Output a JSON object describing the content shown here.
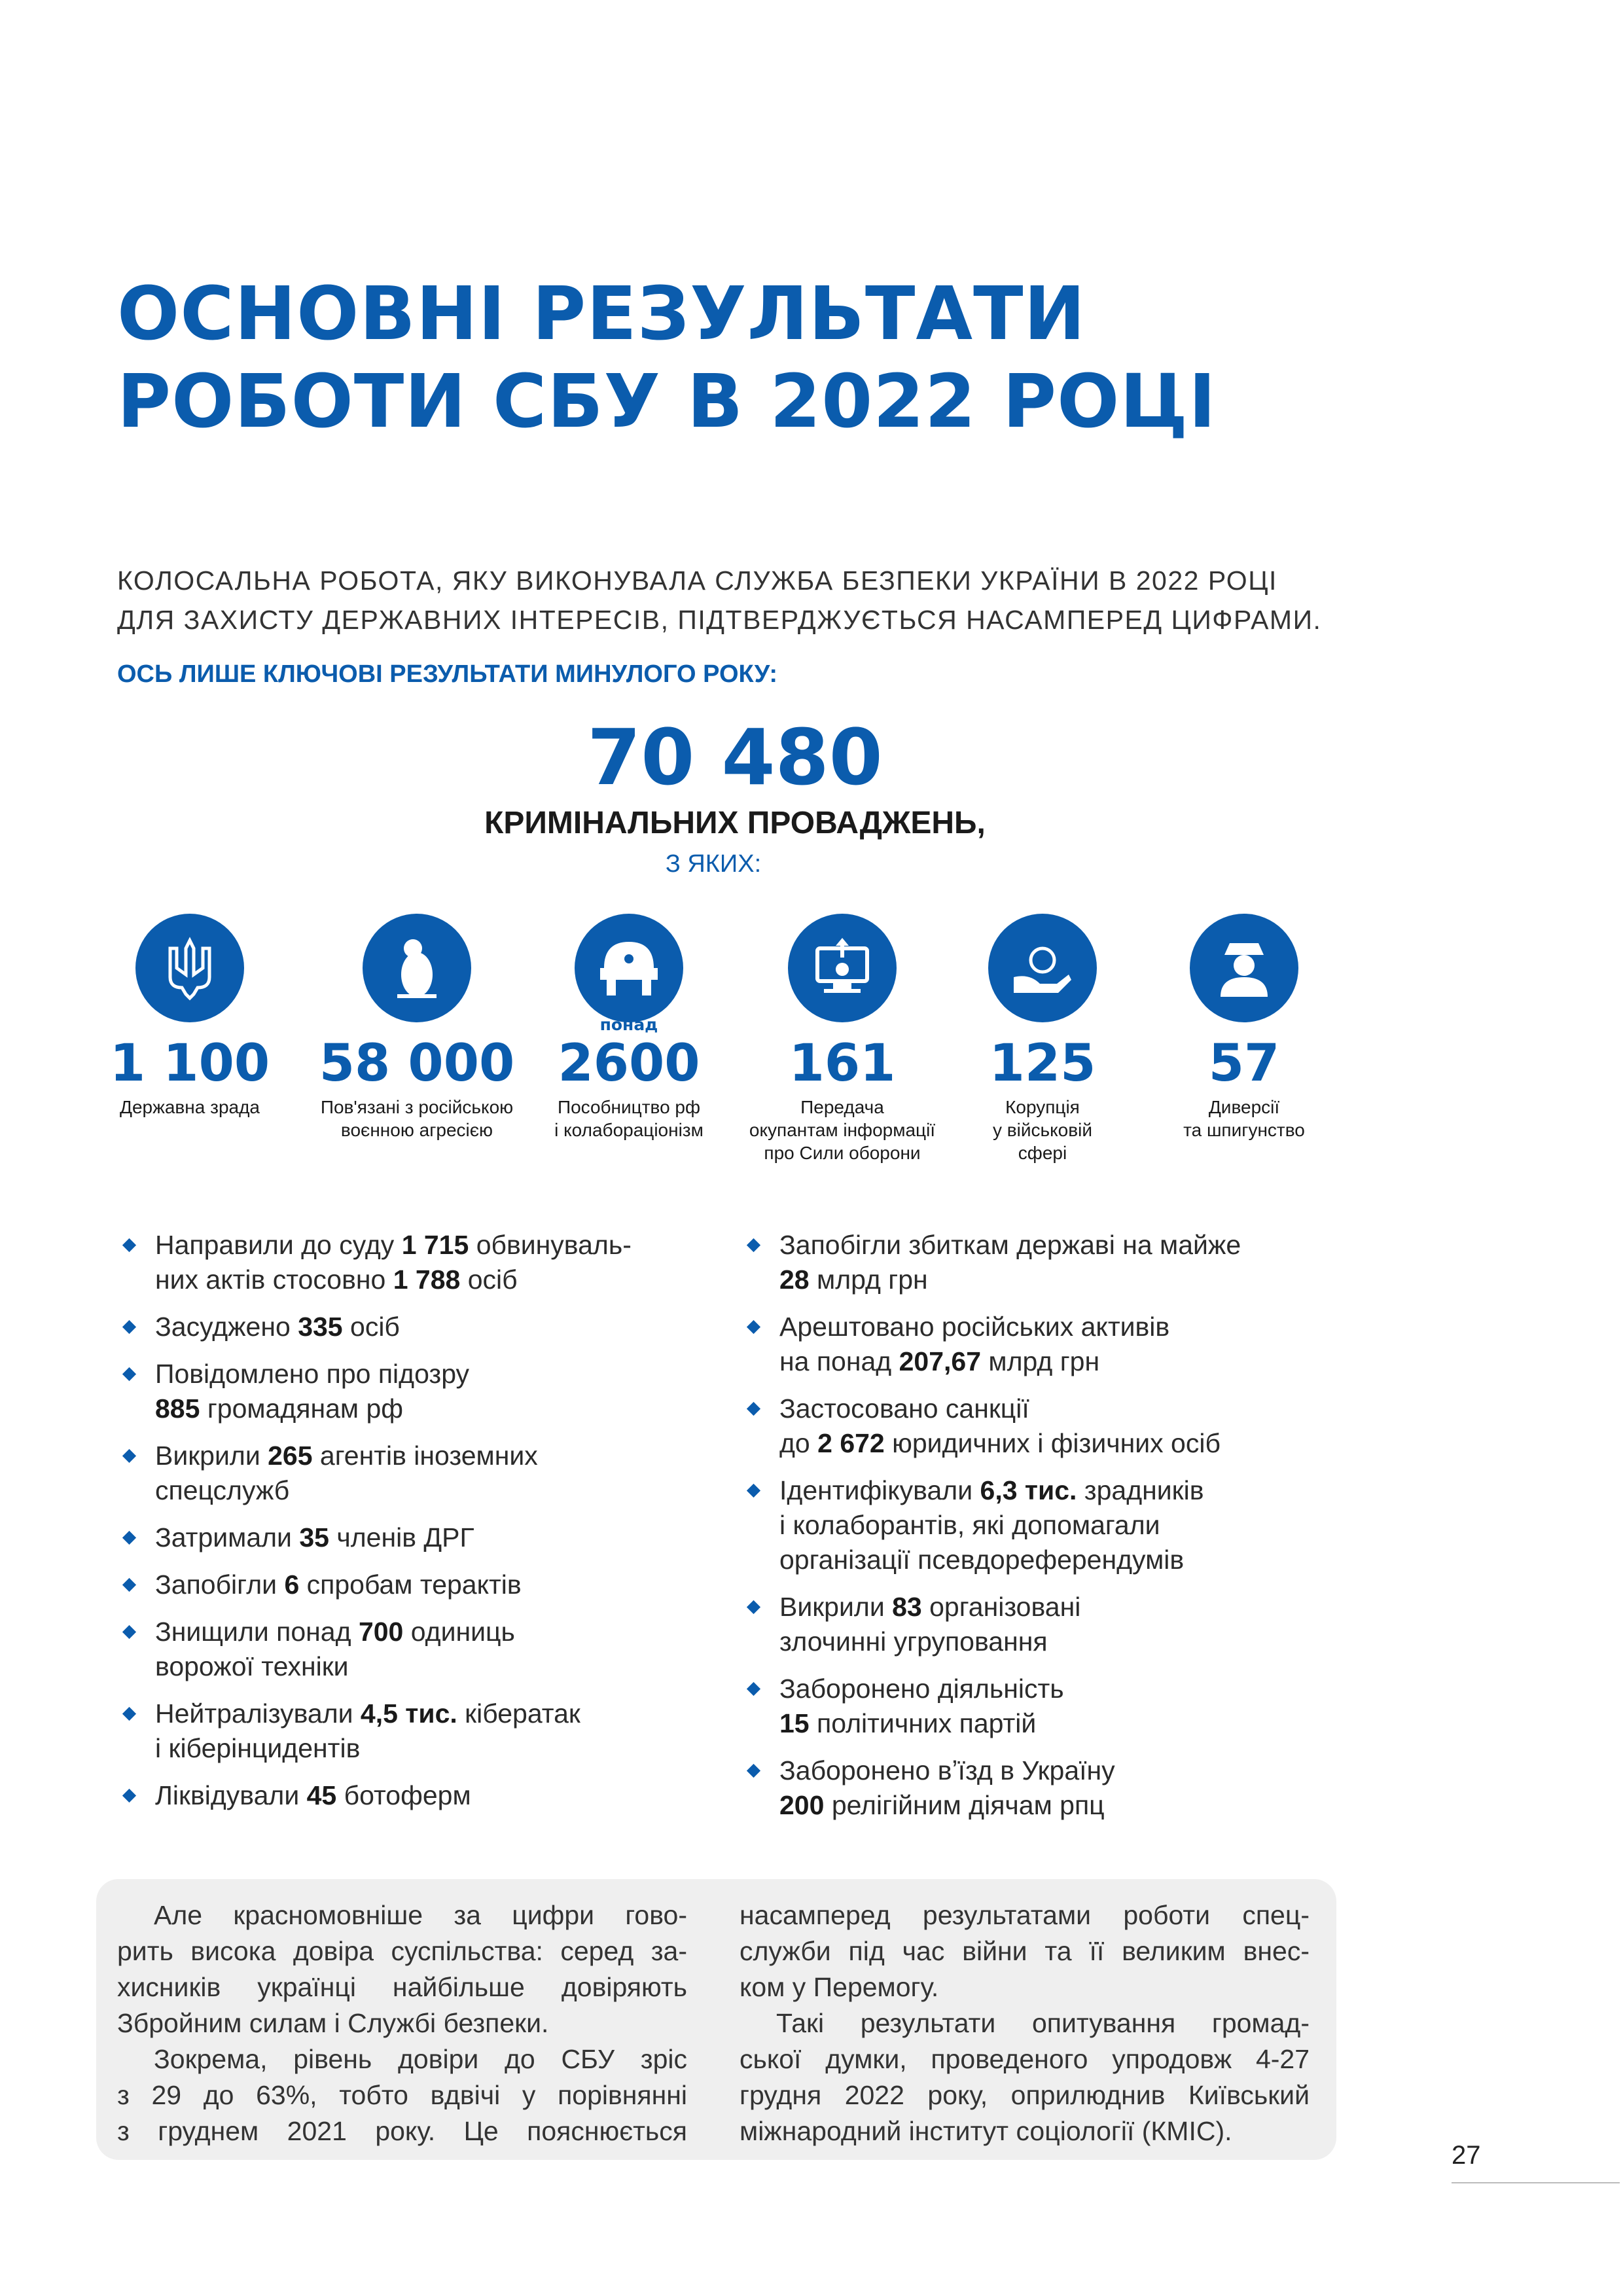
{
  "header": {
    "title_lines": [
      "ОСНОВНІ РЕЗУЛЬТАТИ",
      "РОБОТИ СБУ В 2022 РОЦІ"
    ]
  },
  "intro": {
    "lines": [
      "КОЛОСАЛЬНА РОБОТА, ЯКУ ВИКОНУВАЛА СЛУЖБА БЕЗПЕКИ УКРАЇНИ В 2022 РОЦІ",
      "ДЛЯ ЗАХИСТУ ДЕРЖАВНИХ ІНТЕРЕСІВ, ПІДТВЕРДЖУЄТЬСЯ НАСАМПЕРЕД ЦИФРАМИ."
    ],
    "lead": "ОСЬ ЛИШЕ КЛЮЧОВІ РЕЗУЛЬТАТИ МИНУЛОГО РОКУ:"
  },
  "headline": {
    "number": "70 480",
    "caption": "КРИМІНАЛЬНИХ ПРОВАДЖЕНЬ,",
    "of_which": "З ЯКИХ:"
  },
  "stats": [
    {
      "value": "1 100",
      "label": "Державна зрада"
    },
    {
      "value": "58 000",
      "label": "Пов'язані з російською\nвоєнною агресією"
    },
    {
      "prefix": "понад",
      "value": "2600",
      "label": "Пособництво рф\nі колабораціонізм"
    },
    {
      "value": "161",
      "label": "Передача\nокупантам інформації\nпро Сили оборони"
    },
    {
      "value": "125",
      "label": "Корупція\nу військовій\nсфері"
    },
    {
      "value": "57",
      "label": "Диверсії\nта шпигунство"
    }
  ],
  "bullets": {
    "left": [
      [
        [
          "Направили до суду ",
          {
            "text": "1 715",
            "bold": true
          },
          " обвинуваль-"
        ],
        [
          "них актів стосовно ",
          {
            "text": "1 788",
            "bold": true
          },
          " осіб"
        ]
      ],
      [
        [
          "Засуджено ",
          {
            "text": "335",
            "bold": true
          },
          " осіб"
        ]
      ],
      [
        [
          "Повідомлено про підозру"
        ],
        [
          {
            "text": "885",
            "bold": true
          },
          " громадянам рф"
        ]
      ],
      [
        [
          "Викрили ",
          {
            "text": "265",
            "bold": true
          },
          " агентів іноземних"
        ],
        [
          "спецслужб"
        ]
      ],
      [
        [
          "Затримали ",
          {
            "text": "35",
            "bold": true
          },
          " членів ДРГ"
        ]
      ],
      [
        [
          "Запобігли ",
          {
            "text": "6",
            "bold": true
          },
          " спробам терактів"
        ]
      ],
      [
        [
          "Знищили понад ",
          {
            "text": "700",
            "bold": true
          },
          " одиниць"
        ],
        [
          "ворожої техніки"
        ]
      ],
      [
        [
          "Нейтралізували ",
          {
            "text": "4,5 тис.",
            "bold": true
          },
          " кібератак"
        ],
        [
          "і кіберінцидентів"
        ]
      ],
      [
        [
          "Ліквідували ",
          {
            "text": "45",
            "bold": true
          },
          " ботоферм"
        ]
      ]
    ],
    "right": [
      [
        [
          "Запобігли збиткам державі на майже"
        ],
        [
          {
            "text": "28",
            "bold": true
          },
          " млрд грн"
        ]
      ],
      [
        [
          "Арештовано російських активів"
        ],
        [
          "на понад ",
          {
            "text": "207,67",
            "bold": true
          },
          " млрд грн"
        ]
      ],
      [
        [
          "Застосовано санкції"
        ],
        [
          "до ",
          {
            "text": "2 672",
            "bold": true
          },
          " юридичних і фізичних осіб"
        ]
      ],
      [
        [
          "Ідентифікували ",
          {
            "text": "6,3 тис.",
            "bold": true
          },
          " зрадників"
        ],
        [
          "і колаборантів, які допомагали"
        ],
        [
          "організації псевдореферендумів"
        ]
      ],
      [
        [
          "Викрили ",
          {
            "text": "83",
            "bold": true
          },
          " організовані"
        ],
        [
          "злочинні угруповання"
        ]
      ],
      [
        [
          "Заборонено діяльність"
        ],
        [
          {
            "text": "15",
            "bold": true
          },
          " політичних партій"
        ]
      ],
      [
        [
          "Заборонено вʼїзд в Україну"
        ],
        [
          {
            "text": "200",
            "bold": true
          },
          " релігійним діячам рпц"
        ]
      ]
    ]
  },
  "box": {
    "columns": [
      [
        [
          "Але красномовніше за цифри гово-",
          "рить висока довіра суспільства: серед за-",
          "хисників українці найбільше довіряють",
          "Збройним силам і Службі безпеки."
        ],
        [
          "Зокрема, рівень довіри до СБУ зріс",
          "з 29 до 63%, тобто вдвічі у порівнянні",
          "з груднем 2021 року. Це пояснюється"
        ]
      ],
      [
        [
          "насамперед результатами роботи спец-",
          "служби під час війни та її великим внес-",
          "ком у Перемогу."
        ],
        [
          "Такі результати опитування громад-",
          "ської думки, проведеного упродовж 4-27",
          "грудня 2022 року, оприлюднив Київський",
          "міжнародний інститут соціології (КМІС)."
        ]
      ]
    ]
  },
  "footer": {
    "page_number": "27"
  }
}
